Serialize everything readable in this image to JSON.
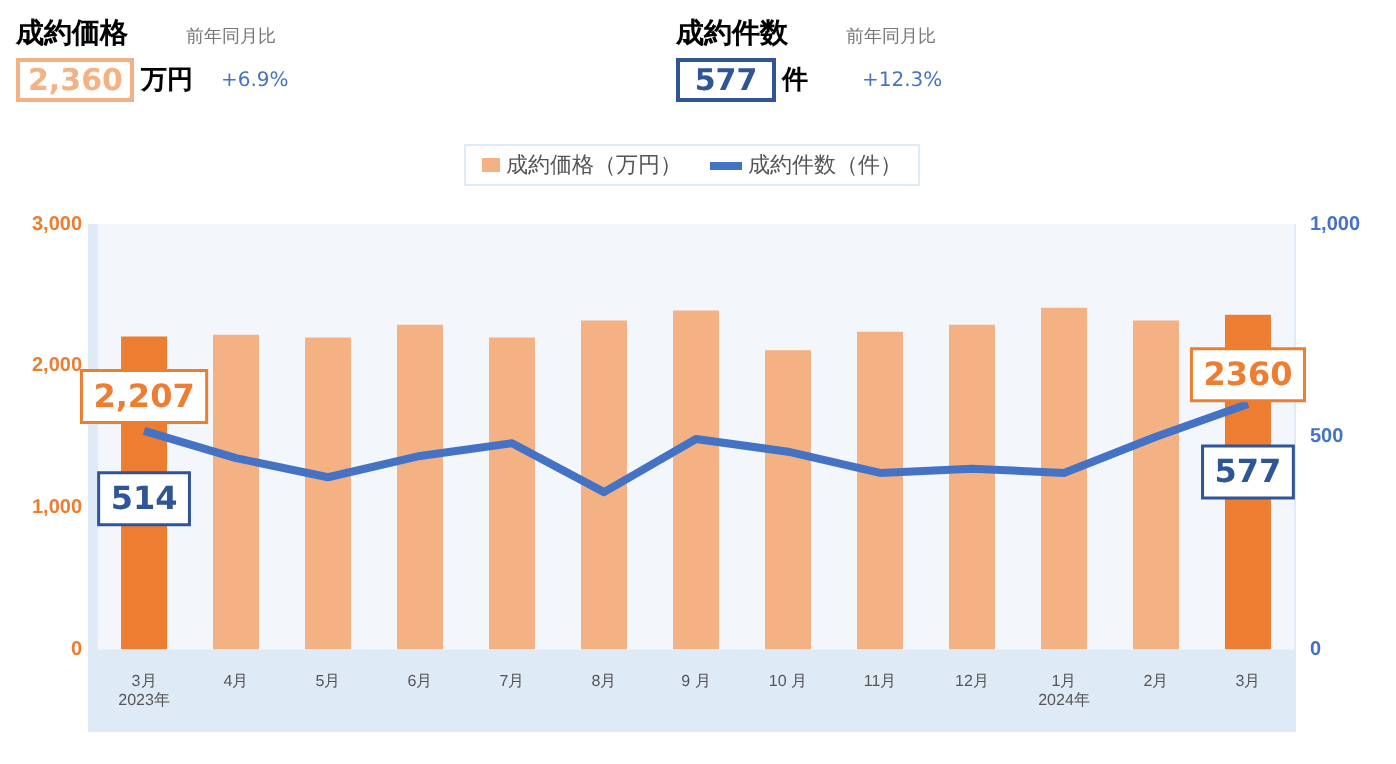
{
  "chart_data": {
    "type": "bar",
    "annotations": [
      "成約価格",
      "2,360",
      "万円",
      "前年同月比",
      "+6.9%",
      "成約件数",
      "577",
      "件",
      "前年同月比",
      "+12.3%"
    ],
    "categories": [
      "3月\n2023年",
      "4月",
      "5月",
      "6月",
      "7月",
      "8月",
      "9 月",
      "10 月",
      "11月",
      "12月",
      "1月\n2024年",
      "2月",
      "3月"
    ],
    "series": [
      {
        "name": "成約価格（万円）",
        "color": "#f4b183",
        "colors": [
          "#ed7d31",
          "#f4b183",
          "#f4b183",
          "#f4b183",
          "#f4b183",
          "#f4b183",
          "#f4b183",
          "#f4b183",
          "#f4b183",
          "#f4b183",
          "#f4b183",
          "#f4b183",
          "#ed7d31"
        ],
        "values": [
          2207,
          2220,
          2200,
          2290,
          2200,
          2320,
          2390,
          2110,
          2240,
          2290,
          2410,
          2320,
          2360
        ],
        "value_labels": [
          "2,207",
          null,
          null,
          null,
          null,
          null,
          null,
          null,
          null,
          null,
          null,
          null,
          "2360"
        ]
      },
      {
        "name": "成約件数（件）",
        "type": "line",
        "axis": "y2",
        "color": "#4472c4",
        "values": [
          514,
          450,
          405,
          455,
          485,
          370,
          495,
          465,
          415,
          425,
          415,
          500,
          577
        ],
        "value_labels": [
          "514",
          null,
          null,
          null,
          null,
          null,
          null,
          null,
          null,
          null,
          null,
          null,
          "577"
        ]
      }
    ],
    "ylim": [
      0,
      3000
    ],
    "yticks": [
      0,
      {
        "value": 1000,
        "label": "1,000"
      },
      {
        "value": 2000,
        "label": "2,000"
      },
      {
        "value": 3000,
        "label": "3,000"
      }
    ],
    "y2lim": [
      0,
      1000
    ],
    "y2ticks": [
      0,
      500,
      {
        "value": 1000,
        "label": "1,000"
      }
    ],
    "legend": "top",
    "grid": false,
    "marker": "none",
    "line_style": "solid"
  }
}
